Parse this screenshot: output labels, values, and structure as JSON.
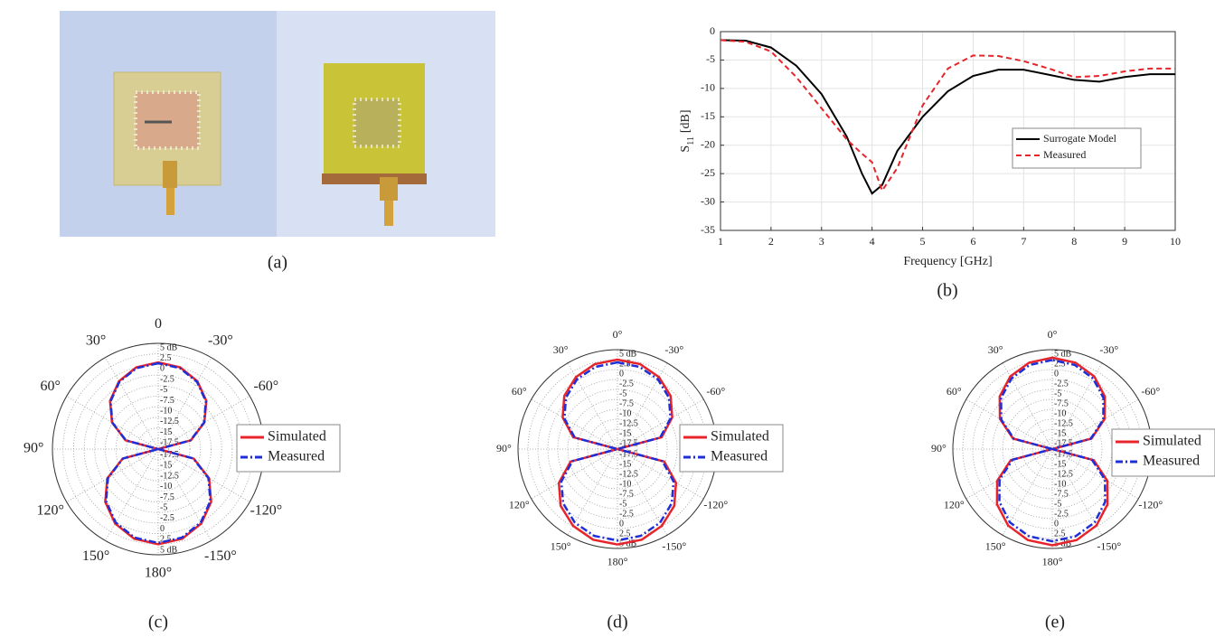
{
  "photo": {
    "caption": "(a)"
  },
  "chart_data": [
    {
      "type": "line",
      "caption": "(b)",
      "xlabel": "Frequency [GHz]",
      "ylabel": [
        "S",
        "11",
        "[dB]"
      ],
      "x": [
        1,
        1.5,
        2,
        2.5,
        3,
        3.5,
        3.8,
        4,
        4.2,
        4.5,
        5,
        5.5,
        6,
        6.5,
        7,
        7.5,
        8,
        8.5,
        9,
        9.5,
        10
      ],
      "series": [
        {
          "name": "Surrogate Model",
          "color": "#000000",
          "line_style": "solid",
          "values": [
            -1.5,
            -1.6,
            -2.8,
            -6,
            -11,
            -18.5,
            -25,
            -28.5,
            -27,
            -21,
            -15,
            -10.5,
            -7.8,
            -6.7,
            -6.7,
            -7.6,
            -8.5,
            -8.8,
            -8,
            -7.5,
            -7.5
          ]
        },
        {
          "name": "Measured",
          "color": "#e8242b",
          "line_style": "dashed",
          "values": [
            -1.5,
            -1.8,
            -3.5,
            -8,
            -13.5,
            -19,
            -21.5,
            -23,
            -28,
            -24,
            -13,
            -6.5,
            -4.2,
            -4.3,
            -5.2,
            -6.5,
            -8,
            -7.8,
            -7,
            -6.5,
            -6.5
          ]
        }
      ],
      "xlim": [
        1,
        10
      ],
      "xticks": [
        1,
        2,
        3,
        4,
        5,
        6,
        7,
        8,
        9,
        10
      ],
      "ylim": [
        -35,
        0
      ],
      "yticks": [
        0,
        -5,
        -10,
        -15,
        -20,
        -25,
        -30,
        -35
      ],
      "grid": true,
      "legend": "right"
    },
    {
      "type": "polar",
      "caption": "(c)",
      "theta": [
        0,
        15,
        30,
        45,
        60,
        75,
        90,
        105,
        120,
        135,
        150,
        165,
        180,
        -165,
        -150,
        -135,
        -120,
        -105,
        -90,
        -75,
        -60,
        -45,
        -30,
        -15
      ],
      "series": [
        {
          "name": "Simulated",
          "color": "#e8242b",
          "line_style": "solid",
          "values": [
            0.5,
            0,
            -1.47,
            -3.9,
            -7.4,
            -12,
            -20,
            -11.3,
            -6.1,
            -2.3,
            0.34,
            1.96,
            2.5,
            1.96,
            0.34,
            -2.3,
            -6.1,
            -11.3,
            -20,
            -12,
            -7.4,
            -3.9,
            -1.47,
            0
          ]
        },
        {
          "name": "Measured",
          "color": "#1f2fd8",
          "line_style": "dashdot",
          "values": [
            0.3,
            -0.19,
            -1.65,
            -4.06,
            -7.5,
            -12.1,
            -20,
            -11.4,
            -6.3,
            -2.57,
            0.07,
            1.67,
            2.2,
            1.67,
            0.07,
            -2.57,
            -6.3,
            -11.4,
            -20,
            -12.1,
            -7.5,
            -4.06,
            -1.65,
            -0.19
          ]
        }
      ],
      "rlim": [
        -20,
        5
      ],
      "rticks": [
        {
          "value": 5,
          "label": "5 dB"
        },
        2.5,
        0,
        -2.5,
        -5,
        -7.5,
        -10,
        -12.5,
        -15,
        -17.5
      ],
      "thetaticks": [
        0,
        {
          "value": 30,
          "label": "30°"
        },
        {
          "value": -30,
          "label": "-30°"
        },
        {
          "value": 60,
          "label": "60°"
        },
        {
          "value": -60,
          "label": "-60°"
        },
        {
          "value": 90,
          "label": "90°"
        },
        {
          "value": 120,
          "label": "120°"
        },
        {
          "value": -120,
          "label": "-120°"
        },
        {
          "value": 150,
          "label": "150°"
        },
        {
          "value": -150,
          "label": "-150°"
        },
        {
          "value": 180,
          "label": "180°"
        }
      ],
      "grid": true,
      "legend": "right"
    },
    {
      "type": "polar",
      "caption": "(d)",
      "theta": [
        0,
        15,
        30,
        45,
        60,
        75,
        90,
        105,
        120,
        135,
        150,
        165,
        180,
        -165,
        -150,
        -135,
        -120,
        -105,
        -90,
        -75,
        -60,
        -45,
        -30,
        -15
      ],
      "series": [
        {
          "name": "Simulated",
          "color": "#e8242b",
          "line_style": "solid",
          "values": [
            2.5,
            2.1,
            0.9,
            -1.1,
            -4.1,
            -8.5,
            -20,
            -7.8,
            -3,
            0.2,
            2.3,
            3.6,
            4,
            3.6,
            2.3,
            0.2,
            -3,
            -7.8,
            -20,
            -8.5,
            -4.1,
            -1.1,
            0.9,
            2.1
          ]
        },
        {
          "name": "Measured",
          "color": "#1f2fd8",
          "line_style": "dashdot",
          "values": [
            1.8,
            1.4,
            0.3,
            -1.7,
            -4.6,
            -8.9,
            -20,
            -8.3,
            -3.7,
            -0.7,
            1.4,
            2.6,
            3,
            2.6,
            1.4,
            -0.7,
            -3.7,
            -8.3,
            -20,
            -8.9,
            -4.6,
            -1.7,
            0.3,
            1.4
          ]
        }
      ],
      "rlim": [
        -20,
        5
      ],
      "rticks": [
        {
          "value": 5,
          "label": "5 dB"
        },
        2.5,
        0,
        -2.5,
        -5,
        -7.5,
        -10,
        -12.5,
        -15,
        -17.5
      ],
      "thetaticks": [
        {
          "value": 0,
          "label": "0°"
        },
        {
          "value": 30,
          "label": "30°"
        },
        {
          "value": -30,
          "label": "-30°"
        },
        {
          "value": 60,
          "label": "60°"
        },
        {
          "value": -60,
          "label": "-60°"
        },
        {
          "value": 90,
          "label": "90°"
        },
        {
          "value": 120,
          "label": "120°"
        },
        {
          "value": -120,
          "label": "-120°"
        },
        {
          "value": 150,
          "label": "150°"
        },
        {
          "value": -150,
          "label": "-150°"
        },
        {
          "value": 180,
          "label": "180°"
        }
      ],
      "grid": true,
      "legend": "right"
    },
    {
      "type": "polar",
      "caption": "(e)",
      "theta": [
        0,
        15,
        30,
        45,
        60,
        75,
        90,
        105,
        120,
        135,
        150,
        165,
        180,
        -165,
        -150,
        -135,
        -120,
        -105,
        -90,
        -75,
        -60,
        -45,
        -30,
        -15
      ],
      "series": [
        {
          "name": "Simulated",
          "color": "#e8242b",
          "line_style": "solid",
          "values": [
            3,
            2.5,
            1.1,
            -1.3,
            -4.8,
            -9.8,
            -20,
            -9.2,
            -4,
            -0.35,
            2.2,
            3.7,
            4.2,
            3.7,
            2.2,
            -0.35,
            -4,
            -9.2,
            -20,
            -9.8,
            -4.8,
            -1.3,
            1.1,
            2.5
          ]
        },
        {
          "name": "Measured",
          "color": "#1f2fd8",
          "line_style": "dashdot",
          "values": [
            2.4,
            1.9,
            0.5,
            -1.8,
            -5.2,
            -10,
            -20,
            -9.7,
            -4.7,
            -1.2,
            1.3,
            2.7,
            3.2,
            2.7,
            1.3,
            -1.2,
            -4.7,
            -9.7,
            -20,
            -10,
            -5.2,
            -1.8,
            0.5,
            1.9
          ]
        }
      ],
      "rlim": [
        -20,
        5
      ],
      "rticks": [
        {
          "value": 5,
          "label": "5 dB"
        },
        2.5,
        0,
        -2.5,
        -5,
        -7.5,
        -10,
        -12.5,
        -15,
        -17.5
      ],
      "thetaticks": [
        {
          "value": 0,
          "label": "0°"
        },
        {
          "value": 30,
          "label": "30°"
        },
        {
          "value": -30,
          "label": "-30°"
        },
        {
          "value": 60,
          "label": "60°"
        },
        {
          "value": -60,
          "label": "-60°"
        },
        {
          "value": 90,
          "label": "90°"
        },
        {
          "value": 120,
          "label": "120°"
        },
        {
          "value": -120,
          "label": "-120°"
        },
        {
          "value": 150,
          "label": "150°"
        },
        {
          "value": -150,
          "label": "-150°"
        },
        {
          "value": 180,
          "label": "180°"
        }
      ],
      "grid": true,
      "legend": "right"
    }
  ]
}
